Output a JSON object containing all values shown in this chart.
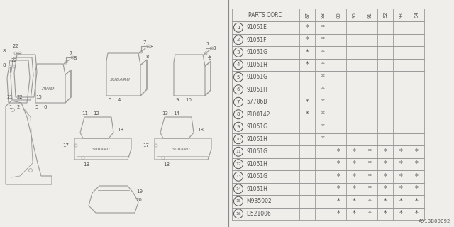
{
  "bg_color": "#f0eeea",
  "diagram_ref": "A913B00092",
  "table": {
    "headers": [
      "PARTS CORD",
      "87",
      "88",
      "89",
      "90",
      "91",
      "92",
      "93",
      "94"
    ],
    "rows": [
      {
        "num": 1,
        "part": "91051E",
        "marks": [
          1,
          1,
          0,
          0,
          0,
          0,
          0,
          0
        ]
      },
      {
        "num": 2,
        "part": "91051F",
        "marks": [
          1,
          1,
          0,
          0,
          0,
          0,
          0,
          0
        ]
      },
      {
        "num": 3,
        "part": "91051G",
        "marks": [
          1,
          1,
          0,
          0,
          0,
          0,
          0,
          0
        ]
      },
      {
        "num": 4,
        "part": "91051H",
        "marks": [
          1,
          1,
          0,
          0,
          0,
          0,
          0,
          0
        ]
      },
      {
        "num": 5,
        "part": "91051G",
        "marks": [
          0,
          1,
          0,
          0,
          0,
          0,
          0,
          0
        ]
      },
      {
        "num": 6,
        "part": "91051H",
        "marks": [
          0,
          1,
          0,
          0,
          0,
          0,
          0,
          0
        ]
      },
      {
        "num": 7,
        "part": "57786B",
        "marks": [
          1,
          1,
          0,
          0,
          0,
          0,
          0,
          0
        ]
      },
      {
        "num": 8,
        "part": "P100142",
        "marks": [
          1,
          1,
          0,
          0,
          0,
          0,
          0,
          0
        ]
      },
      {
        "num": 9,
        "part": "91051G",
        "marks": [
          0,
          1,
          0,
          0,
          0,
          0,
          0,
          0
        ]
      },
      {
        "num": 10,
        "part": "91051H",
        "marks": [
          0,
          1,
          0,
          0,
          0,
          0,
          0,
          0
        ]
      },
      {
        "num": 11,
        "part": "91051G",
        "marks": [
          0,
          0,
          1,
          1,
          1,
          1,
          1,
          1
        ]
      },
      {
        "num": 12,
        "part": "91051H",
        "marks": [
          0,
          0,
          1,
          1,
          1,
          1,
          1,
          1
        ]
      },
      {
        "num": 13,
        "part": "91051G",
        "marks": [
          0,
          0,
          1,
          1,
          1,
          1,
          1,
          1
        ]
      },
      {
        "num": 14,
        "part": "91051H",
        "marks": [
          0,
          0,
          1,
          1,
          1,
          1,
          1,
          1
        ]
      },
      {
        "num": 15,
        "part": "M935002",
        "marks": [
          0,
          0,
          1,
          1,
          1,
          1,
          1,
          1
        ]
      },
      {
        "num": 16,
        "part": "D521006",
        "marks": [
          0,
          0,
          1,
          1,
          1,
          1,
          1,
          1
        ]
      }
    ]
  },
  "line_color": "#888888",
  "text_color": "#555555",
  "grid_color": "#999999"
}
